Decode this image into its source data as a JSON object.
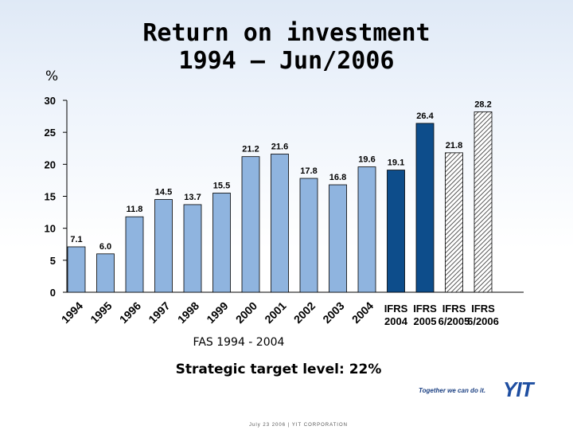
{
  "chart_data": {
    "type": "bar",
    "title": "Return on investment 1994 – Jun/2006",
    "title_lines": [
      "Return on investment",
      "1994 – Jun/2006"
    ],
    "ylabel": "%",
    "ylim": [
      0,
      30
    ],
    "yticks": [
      0,
      5,
      10,
      15,
      20,
      25,
      30
    ],
    "grid": false,
    "categories": [
      "1994",
      "1995",
      "1996",
      "1997",
      "1998",
      "1999",
      "2000",
      "2001",
      "2002",
      "2003",
      "2004",
      "IFRS 2004",
      "IFRS 2005",
      "IFRS 6/2005",
      "IFRS 6/2006"
    ],
    "values": [
      7.1,
      6.0,
      11.8,
      14.5,
      13.7,
      15.5,
      21.2,
      21.6,
      17.8,
      16.8,
      19.6,
      19.1,
      26.4,
      21.8,
      28.2
    ],
    "value_labels": [
      "7.1",
      "6.0",
      "11.8",
      "14.5",
      "13.7",
      "15.5",
      "21.2",
      "21.6",
      "17.8",
      "16.8",
      "19.6",
      "19.1",
      "26.4",
      "21.8",
      "28.2"
    ],
    "category_label_lines": [
      [
        "1994"
      ],
      [
        "1995"
      ],
      [
        "1996"
      ],
      [
        "1997"
      ],
      [
        "1998"
      ],
      [
        "1999"
      ],
      [
        "2000"
      ],
      [
        "2001"
      ],
      [
        "2002"
      ],
      [
        "2003"
      ],
      [
        "2004"
      ],
      [
        "IFRS",
        "2004"
      ],
      [
        "IFRS",
        "2005"
      ],
      [
        "IFRS",
        "6/2005"
      ],
      [
        "IFRS",
        "6/2006"
      ]
    ],
    "bar_styles": [
      "fas",
      "fas",
      "fas",
      "fas",
      "fas",
      "fas",
      "fas",
      "fas",
      "fas",
      "fas",
      "fas",
      "ifrs",
      "ifrs",
      "ifrs-partial",
      "ifrs-partial"
    ],
    "colors": {
      "fas": "#8fb4df",
      "ifrs": "#0d4d8b",
      "ifrs_partial_base": "#ffffff",
      "ifrs_partial_hatch": "#2c2c2c",
      "bar_stroke": "#000000"
    }
  },
  "subtitle": "FAS 1994 - 2004",
  "target": "Strategic target level: 22%",
  "footer": "July 23 2006  |  YIT CORPORATION",
  "logo": {
    "slogan": "Together we can do it.",
    "mark": "YIT"
  }
}
